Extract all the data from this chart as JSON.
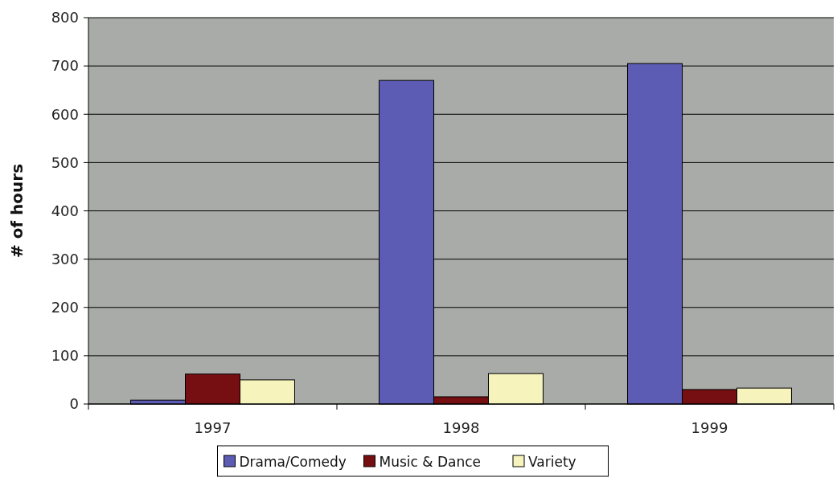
{
  "chart_data": {
    "type": "bar",
    "ylabel": "# of hours",
    "categories": [
      "1997",
      "1998",
      "1999"
    ],
    "series": [
      {
        "name": "Drama/Comedy",
        "color": "#5c5cb4",
        "values": [
          8,
          670,
          705
        ]
      },
      {
        "name": "Music & Dance",
        "color": "#760f12",
        "values": [
          62,
          15,
          30
        ]
      },
      {
        "name": "Variety",
        "color": "#f6f4bc",
        "values": [
          50,
          63,
          33
        ]
      }
    ],
    "ylim": [
      0,
      800
    ],
    "yticks": [
      0,
      100,
      200,
      300,
      400,
      500,
      600,
      700,
      800
    ],
    "grid": "y",
    "legend": "bottom"
  }
}
